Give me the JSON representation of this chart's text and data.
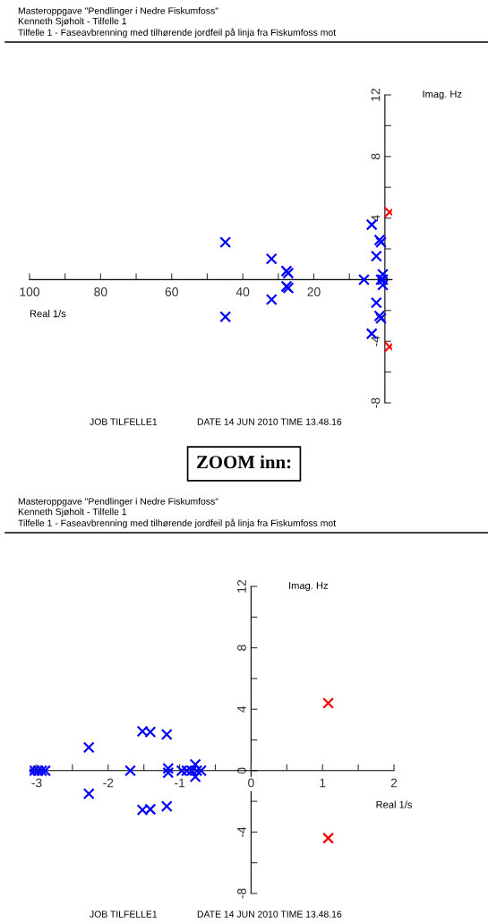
{
  "chart_data": [
    {
      "type": "scatter",
      "subtitle": "Masteroppgave \"Pendlinger i Nedre Fiskumfoss\"\nKenneth Sjøholt - Tilfelle 1\nTilfelle 1 - Faseavbrenning med tilhørende jordfeil på linja fra Fiskumfoss mot",
      "xlabel": "Real 1/s",
      "ylabel": "Imag. Hz",
      "marker": "cross",
      "grid": false,
      "legend": false,
      "xlim": [
        -100,
        2
      ],
      "ylim": [
        -8,
        12
      ],
      "xticks": [
        {
          "value": -100,
          "label": "100"
        },
        {
          "value": -90,
          "label": null
        },
        {
          "value": -80,
          "label": "80"
        },
        {
          "value": -70,
          "label": null
        },
        {
          "value": -60,
          "label": "60"
        },
        {
          "value": -50,
          "label": null
        },
        {
          "value": -40,
          "label": "40"
        },
        {
          "value": -30,
          "label": null
        },
        {
          "value": -20,
          "label": "20"
        },
        {
          "value": -10,
          "label": null
        }
      ],
      "yticks": [
        12,
        {
          "value": 10,
          "label": null
        },
        8,
        {
          "value": 6,
          "label": null
        },
        4,
        {
          "value": 2,
          "label": null
        },
        {
          "value": -2,
          "label": null
        },
        -4,
        {
          "value": -6,
          "label": null
        },
        -8
      ],
      "series": [
        {
          "color": "#0000ff",
          "x": [
            -44.9,
            -44.9,
            -31.9,
            -31.9,
            -27.7,
            -27.2,
            -27.7,
            -27.2,
            -5.9,
            -3.7,
            -3.7,
            -1.5,
            -1.1,
            -2.4,
            -2.4,
            -1.5,
            -1.1,
            -1.1,
            -0.6,
            -0.6,
            -0.6
          ],
          "values": [
            2.43,
            -2.41,
            1.35,
            -1.29,
            0.56,
            0.42,
            -0.44,
            -0.54,
            0,
            3.57,
            -3.51,
            2.57,
            2.43,
            1.53,
            -1.5,
            -2.35,
            -2.51,
            0,
            0,
            0.35,
            -0.35
          ]
        },
        {
          "color": "#ff0000",
          "x": [
            1.3,
            1.3
          ],
          "values": [
            4.38,
            -4.36
          ]
        }
      ],
      "annotations": [
        "JOB TILFELLE1",
        "DATE 14 JUN 2010 TIME 13.48.16"
      ]
    },
    {
      "type": "scatter",
      "title": "ZOOM inn:",
      "subtitle": "Masteroppgave \"Pendlinger i Nedre Fiskumfoss\"\nKenneth Sjøholt - Tilfelle 1\nTilfelle 1 - Faseavbrenning med tilhørende jordfeil på linja fra Fiskumfoss mot",
      "xlabel": "Real 1/s",
      "ylabel": "Imag. Hz",
      "marker": "cross",
      "grid": false,
      "legend": false,
      "xlim": [
        -3.1,
        2
      ],
      "ylim": [
        -8,
        12
      ],
      "xticks": [
        {
          "value": -3,
          "label": "-3"
        },
        {
          "value": -2.5,
          "label": null
        },
        {
          "value": -2,
          "label": "-2"
        },
        {
          "value": -1.5,
          "label": null
        },
        {
          "value": -1,
          "label": "-1"
        },
        {
          "value": -0.5,
          "label": null
        },
        0,
        {
          "value": 0.5,
          "label": null
        },
        1,
        {
          "value": 1.5,
          "label": null
        },
        2
      ],
      "yticks": [
        12,
        {
          "value": 10,
          "label": null
        },
        8,
        {
          "value": 6,
          "label": null
        },
        4,
        {
          "value": 2,
          "label": null
        },
        0,
        {
          "value": -2,
          "label": null
        },
        -4,
        {
          "value": -6,
          "label": null
        },
        -8
      ],
      "series": [
        {
          "color": "#0000ff",
          "x": [
            -3.08,
            -3.03,
            -2.98,
            -2.93,
            -2.88,
            -2.27,
            -2.27,
            -1.69,
            -1.52,
            -1.41,
            -1.52,
            -1.41,
            -1.18,
            -1.18,
            -1.16,
            -1.16,
            -0.97,
            -0.9,
            -0.83,
            -0.76,
            -0.7,
            -0.78,
            -0.78
          ],
          "values": [
            0,
            0,
            0,
            0,
            0,
            1.51,
            -1.51,
            0,
            2.56,
            2.52,
            -2.56,
            -2.52,
            2.36,
            -2.32,
            0.14,
            -0.14,
            0,
            0,
            0,
            0,
            0,
            0.4,
            -0.4
          ]
        },
        {
          "color": "#ff0000",
          "x": [
            1.08,
            1.08
          ],
          "values": [
            4.4,
            -4.4
          ]
        }
      ],
      "annotations": [
        "JOB TILFELLE1",
        "DATE 14 JUN 2010 TIME 13.48.16"
      ]
    }
  ]
}
